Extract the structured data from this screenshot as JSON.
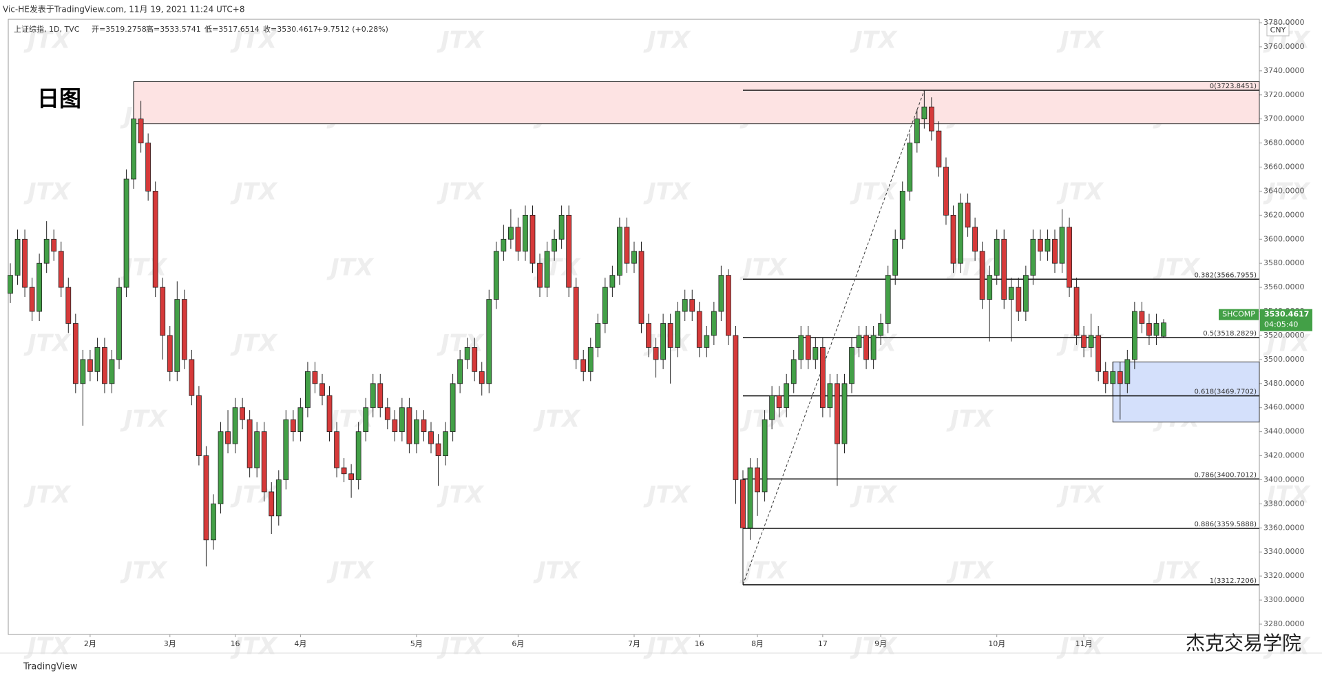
{
  "header": {
    "publisher": "Vic-HE发表于TradingView.com, 11月 19, 2021 11:24 UTC+8",
    "symbol": "上证综指, 1D, TVC",
    "open": "开=3519.2758",
    "high": "高=3533.5741",
    "low": "低=3517.6514",
    "close": "收=3530.4617",
    "change": "+9.7512 (+0.28%)"
  },
  "annotation": "日图",
  "currency": "CNY",
  "watermark": "JTX",
  "footer": {
    "logo": "TradingView",
    "brand": "杰克交易学院"
  },
  "price_tag": {
    "symbol": "SHCOMP",
    "price": "3530.4617",
    "countdown": "04:05:40"
  },
  "chart_data": {
    "type": "candlestick",
    "up_color": "#43a047",
    "down_color": "#d63a3a",
    "ylim": [
      3280,
      3780
    ],
    "yticks": [
      {
        "value": 3280,
        "label": "3280.0000"
      },
      {
        "value": 3300,
        "label": "3300.0000"
      },
      {
        "value": 3320,
        "label": "3320.0000"
      },
      {
        "value": 3340,
        "label": "3340.0000"
      },
      {
        "value": 3360,
        "label": "3360.0000"
      },
      {
        "value": 3380,
        "label": "3380.0000"
      },
      {
        "value": 3400,
        "label": "3400.0000"
      },
      {
        "value": 3420,
        "label": "3420.0000"
      },
      {
        "value": 3440,
        "label": "3440.0000"
      },
      {
        "value": 3460,
        "label": "3460.0000"
      },
      {
        "value": 3480,
        "label": "3480.0000"
      },
      {
        "value": 3500,
        "label": "3500.0000"
      },
      {
        "value": 3520,
        "label": "3520.0000"
      },
      {
        "value": 3540,
        "label": "3540.0000"
      },
      {
        "value": 3560,
        "label": "3560.0000"
      },
      {
        "value": 3580,
        "label": "3580.0000"
      },
      {
        "value": 3600,
        "label": "3600.0000"
      },
      {
        "value": 3620,
        "label": "3620.0000"
      },
      {
        "value": 3640,
        "label": "3640.0000"
      },
      {
        "value": 3660,
        "label": "3660.0000"
      },
      {
        "value": 3680,
        "label": "3680.0000"
      },
      {
        "value": 3700,
        "label": "3700.0000"
      },
      {
        "value": 3720,
        "label": "3720.0000"
      },
      {
        "value": 3740,
        "label": "3740.0000"
      },
      {
        "value": 3760,
        "label": "3760.0000"
      },
      {
        "value": 3780,
        "label": "3780.0000"
      }
    ],
    "categories": [
      null,
      null,
      null,
      null,
      null,
      null,
      null,
      null,
      null,
      null,
      null,
      "2月",
      null,
      null,
      null,
      null,
      null,
      null,
      null,
      null,
      null,
      null,
      "3月",
      null,
      null,
      null,
      null,
      null,
      null,
      null,
      null,
      "16",
      null,
      null,
      null,
      null,
      null,
      null,
      null,
      null,
      "4月",
      null,
      null,
      null,
      null,
      null,
      null,
      null,
      null,
      null,
      null,
      null,
      null,
      null,
      null,
      null,
      "5月",
      null,
      null,
      null,
      null,
      null,
      null,
      null,
      null,
      null,
      null,
      null,
      null,
      null,
      "6月",
      null,
      null,
      null,
      null,
      null,
      null,
      null,
      null,
      null,
      null,
      null,
      null,
      null,
      null,
      null,
      "7月",
      null,
      null,
      null,
      null,
      null,
      null,
      null,
      null,
      "16",
      null,
      null,
      null,
      null,
      null,
      null,
      null,
      "8月",
      null,
      null,
      null,
      null,
      null,
      null,
      null,
      null,
      "17",
      null,
      null,
      null,
      null,
      null,
      null,
      null,
      "9月",
      null,
      null,
      null,
      null,
      null,
      null,
      null,
      null,
      null,
      null,
      null,
      null,
      null,
      null,
      null,
      "10月",
      null,
      null,
      null,
      null,
      null,
      null,
      null,
      null,
      null,
      null,
      null,
      "11月",
      null,
      null,
      null,
      null,
      null,
      null,
      null,
      null,
      null,
      null,
      null
    ],
    "candles": [
      [
        3555,
        3580,
        3547,
        3570
      ],
      [
        3570,
        3608,
        3562,
        3600
      ],
      [
        3600,
        3608,
        3552,
        3560
      ],
      [
        3560,
        3568,
        3532,
        3540
      ],
      [
        3540,
        3588,
        3532,
        3580
      ],
      [
        3580,
        3615,
        3572,
        3600
      ],
      [
        3600,
        3608,
        3582,
        3590
      ],
      [
        3590,
        3598,
        3552,
        3560
      ],
      [
        3560,
        3568,
        3522,
        3530
      ],
      [
        3530,
        3538,
        3472,
        3480
      ],
      [
        3480,
        3508,
        3445,
        3500
      ],
      [
        3500,
        3508,
        3482,
        3490
      ],
      [
        3490,
        3518,
        3482,
        3510
      ],
      [
        3510,
        3518,
        3472,
        3480
      ],
      [
        3480,
        3508,
        3472,
        3500
      ],
      [
        3500,
        3568,
        3492,
        3560
      ],
      [
        3560,
        3658,
        3552,
        3650
      ],
      [
        3650,
        3731,
        3642,
        3700
      ],
      [
        3700,
        3715,
        3672,
        3680
      ],
      [
        3680,
        3688,
        3632,
        3640
      ],
      [
        3640,
        3648,
        3552,
        3560
      ],
      [
        3560,
        3568,
        3500,
        3520
      ],
      [
        3520,
        3528,
        3482,
        3490
      ],
      [
        3490,
        3565,
        3482,
        3550
      ],
      [
        3550,
        3558,
        3492,
        3500
      ],
      [
        3500,
        3508,
        3462,
        3470
      ],
      [
        3470,
        3478,
        3412,
        3420
      ],
      [
        3420,
        3428,
        3328,
        3350
      ],
      [
        3350,
        3388,
        3342,
        3380
      ],
      [
        3380,
        3448,
        3372,
        3440
      ],
      [
        3440,
        3458,
        3422,
        3430
      ],
      [
        3430,
        3468,
        3422,
        3460
      ],
      [
        3460,
        3468,
        3442,
        3450
      ],
      [
        3450,
        3458,
        3402,
        3410
      ],
      [
        3410,
        3448,
        3402,
        3440
      ],
      [
        3440,
        3448,
        3382,
        3390
      ],
      [
        3390,
        3398,
        3355,
        3370
      ],
      [
        3370,
        3408,
        3362,
        3400
      ],
      [
        3400,
        3458,
        3392,
        3450
      ],
      [
        3450,
        3458,
        3432,
        3440
      ],
      [
        3440,
        3468,
        3432,
        3460
      ],
      [
        3460,
        3498,
        3452,
        3490
      ],
      [
        3490,
        3498,
        3472,
        3480
      ],
      [
        3480,
        3488,
        3462,
        3470
      ],
      [
        3470,
        3478,
        3432,
        3440
      ],
      [
        3440,
        3448,
        3402,
        3410
      ],
      [
        3410,
        3418,
        3398,
        3405
      ],
      [
        3405,
        3413,
        3385,
        3400
      ],
      [
        3400,
        3448,
        3392,
        3440
      ],
      [
        3440,
        3468,
        3432,
        3460
      ],
      [
        3460,
        3488,
        3452,
        3480
      ],
      [
        3480,
        3488,
        3452,
        3460
      ],
      [
        3460,
        3468,
        3442,
        3450
      ],
      [
        3450,
        3458,
        3432,
        3440
      ],
      [
        3440,
        3468,
        3432,
        3460
      ],
      [
        3460,
        3468,
        3422,
        3430
      ],
      [
        3430,
        3458,
        3422,
        3450
      ],
      [
        3450,
        3458,
        3432,
        3440
      ],
      [
        3440,
        3448,
        3422,
        3430
      ],
      [
        3430,
        3438,
        3395,
        3420
      ],
      [
        3420,
        3448,
        3412,
        3440
      ],
      [
        3440,
        3488,
        3432,
        3480
      ],
      [
        3480,
        3508,
        3472,
        3500
      ],
      [
        3500,
        3518,
        3492,
        3510
      ],
      [
        3510,
        3518,
        3482,
        3490
      ],
      [
        3490,
        3498,
        3470,
        3480
      ],
      [
        3480,
        3558,
        3472,
        3550
      ],
      [
        3550,
        3598,
        3542,
        3590
      ],
      [
        3590,
        3612,
        3582,
        3600
      ],
      [
        3600,
        3625,
        3592,
        3610
      ],
      [
        3610,
        3618,
        3582,
        3590
      ],
      [
        3590,
        3628,
        3582,
        3620
      ],
      [
        3620,
        3628,
        3572,
        3580
      ],
      [
        3580,
        3588,
        3552,
        3560
      ],
      [
        3560,
        3598,
        3552,
        3590
      ],
      [
        3590,
        3608,
        3582,
        3600
      ],
      [
        3600,
        3628,
        3592,
        3620
      ],
      [
        3620,
        3628,
        3552,
        3560
      ],
      [
        3560,
        3568,
        3492,
        3500
      ],
      [
        3500,
        3508,
        3482,
        3490
      ],
      [
        3490,
        3518,
        3482,
        3510
      ],
      [
        3510,
        3538,
        3502,
        3530
      ],
      [
        3530,
        3568,
        3522,
        3560
      ],
      [
        3560,
        3578,
        3552,
        3570
      ],
      [
        3570,
        3618,
        3562,
        3610
      ],
      [
        3610,
        3618,
        3572,
        3580
      ],
      [
        3580,
        3598,
        3572,
        3590
      ],
      [
        3590,
        3598,
        3522,
        3530
      ],
      [
        3530,
        3538,
        3502,
        3510
      ],
      [
        3510,
        3518,
        3485,
        3500
      ],
      [
        3500,
        3538,
        3492,
        3530
      ],
      [
        3530,
        3538,
        3480,
        3510
      ],
      [
        3510,
        3548,
        3502,
        3540
      ],
      [
        3540,
        3558,
        3532,
        3550
      ],
      [
        3550,
        3558,
        3532,
        3540
      ],
      [
        3540,
        3548,
        3502,
        3510
      ],
      [
        3510,
        3528,
        3502,
        3520
      ],
      [
        3520,
        3548,
        3512,
        3540
      ],
      [
        3540,
        3578,
        3532,
        3570
      ],
      [
        3570,
        3575,
        3512,
        3520
      ],
      [
        3520,
        3528,
        3380,
        3400
      ],
      [
        3400,
        3408,
        3312.7206,
        3360
      ],
      [
        3360,
        3418,
        3350,
        3410
      ],
      [
        3410,
        3418,
        3370,
        3390
      ],
      [
        3390,
        3458,
        3382,
        3450
      ],
      [
        3450,
        3478,
        3442,
        3470
      ],
      [
        3470,
        3478,
        3452,
        3460
      ],
      [
        3460,
        3488,
        3452,
        3480
      ],
      [
        3480,
        3508,
        3472,
        3500
      ],
      [
        3500,
        3528,
        3492,
        3520
      ],
      [
        3520,
        3528,
        3492,
        3500
      ],
      [
        3500,
        3518,
        3492,
        3510
      ],
      [
        3510,
        3518,
        3452,
        3460
      ],
      [
        3460,
        3488,
        3452,
        3480
      ],
      [
        3480,
        3488,
        3395,
        3430
      ],
      [
        3430,
        3488,
        3422,
        3480
      ],
      [
        3480,
        3518,
        3472,
        3510
      ],
      [
        3510,
        3528,
        3502,
        3520
      ],
      [
        3520,
        3528,
        3492,
        3500
      ],
      [
        3500,
        3528,
        3492,
        3520
      ],
      [
        3520,
        3538,
        3512,
        3530
      ],
      [
        3530,
        3578,
        3522,
        3570
      ],
      [
        3570,
        3608,
        3562,
        3600
      ],
      [
        3600,
        3648,
        3592,
        3640
      ],
      [
        3640,
        3688,
        3632,
        3680
      ],
      [
        3680,
        3708,
        3672,
        3700
      ],
      [
        3700,
        3723.8451,
        3692,
        3710
      ],
      [
        3710,
        3718,
        3682,
        3690
      ],
      [
        3690,
        3698,
        3652,
        3660
      ],
      [
        3660,
        3668,
        3612,
        3620
      ],
      [
        3620,
        3628,
        3572,
        3580
      ],
      [
        3580,
        3638,
        3572,
        3630
      ],
      [
        3630,
        3638,
        3602,
        3610
      ],
      [
        3610,
        3618,
        3582,
        3590
      ],
      [
        3590,
        3598,
        3542,
        3550
      ],
      [
        3550,
        3578,
        3515,
        3570
      ],
      [
        3570,
        3608,
        3562,
        3600
      ],
      [
        3600,
        3608,
        3542,
        3550
      ],
      [
        3550,
        3568,
        3515,
        3560
      ],
      [
        3560,
        3568,
        3532,
        3540
      ],
      [
        3540,
        3578,
        3532,
        3570
      ],
      [
        3570,
        3608,
        3562,
        3600
      ],
      [
        3600,
        3608,
        3582,
        3590
      ],
      [
        3590,
        3608,
        3582,
        3600
      ],
      [
        3600,
        3608,
        3572,
        3580
      ],
      [
        3580,
        3625,
        3572,
        3610
      ],
      [
        3610,
        3618,
        3552,
        3560
      ],
      [
        3560,
        3568,
        3512,
        3520
      ],
      [
        3520,
        3528,
        3502,
        3510
      ],
      [
        3510,
        3538,
        3502,
        3520
      ],
      [
        3520,
        3528,
        3482,
        3490
      ],
      [
        3490,
        3498,
        3472,
        3480
      ],
      [
        3480,
        3498,
        3470,
        3490
      ],
      [
        3490,
        3498,
        3450,
        3480
      ],
      [
        3480,
        3508,
        3472,
        3500
      ],
      [
        3500,
        3548,
        3492,
        3540
      ],
      [
        3540,
        3548,
        3522,
        3530
      ],
      [
        3530,
        3538,
        3512,
        3520
      ],
      [
        3520,
        3538,
        3512,
        3530
      ],
      [
        3519.2758,
        3533.5741,
        3517.6514,
        3530.4617
      ]
    ],
    "zones": [
      {
        "start": 17,
        "from": 3696,
        "to": 3731,
        "color": "#fde3e3"
      },
      {
        "start": 152,
        "from": 3448,
        "to": 3498,
        "color": "#d4e0fb"
      }
    ],
    "trend_line": {
      "from": [
        101,
        3312.7206
      ],
      "to": [
        126,
        3723.8451
      ]
    },
    "fib": {
      "start": 101,
      "levels": [
        {
          "value": 3723.8451,
          "label": "0(3723.8451)"
        },
        {
          "value": 3566.7955,
          "label": "0.382(3566.7955)"
        },
        {
          "value": 3518.2829,
          "label": "0.5(3518.2829)"
        },
        {
          "value": 3469.7702,
          "label": "0.618(3469.7702)"
        },
        {
          "value": 3400.7012,
          "label": "0.786(3400.7012)"
        },
        {
          "value": 3359.5888,
          "label": "0.886(3359.5888)"
        },
        {
          "value": 3312.7206,
          "label": "1(3312.7206)"
        }
      ]
    }
  }
}
